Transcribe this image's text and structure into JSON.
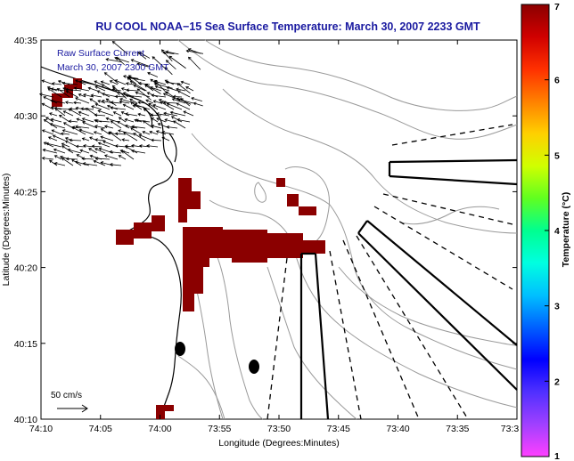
{
  "title": "RU COOL  NOAA−15  Sea Surface Temperature:  March 30, 2007 2233 GMT",
  "legend": {
    "line1": "Raw Surface Current",
    "line2": "March 30, 2007 2300 GMT"
  },
  "axes": {
    "xlabel": "Longitude (Degrees:Minutes)",
    "ylabel": "Latitude (Degrees:Minutes)",
    "x_ticks": [
      "74:10",
      "74:05",
      "74:00",
      "73:55",
      "73:50",
      "73:45",
      "73:40",
      "73:35",
      "73:3"
    ],
    "y_ticks": [
      "40:35",
      "40:30",
      "40:25",
      "40:20",
      "40:15",
      "40:10"
    ]
  },
  "scale_vector": {
    "label": "50 cm/s"
  },
  "colorbar": {
    "label": "Temperature (°C)",
    "ticks": [
      "7",
      "6",
      "5",
      "4",
      "3",
      "2",
      "1"
    ],
    "colors": [
      "#8b0000",
      "#d00000",
      "#ff3000",
      "#ff8000",
      "#ffd000",
      "#d0ff00",
      "#60ff20",
      "#00ff90",
      "#00ffe0",
      "#00c0ff",
      "#0060ff",
      "#0000ff",
      "#5030ff",
      "#a040ff",
      "#ff40ff"
    ]
  },
  "colors": {
    "title_text": "#1a1aa0",
    "sst_patch": "#8b0000",
    "contour": "#9a9a9a"
  }
}
